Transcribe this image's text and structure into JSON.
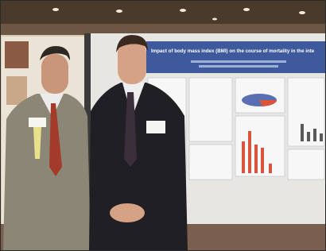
{
  "poster": {
    "title": "Impact of body mass index (BMI) on the course of mortality in the inte"
  }
}
